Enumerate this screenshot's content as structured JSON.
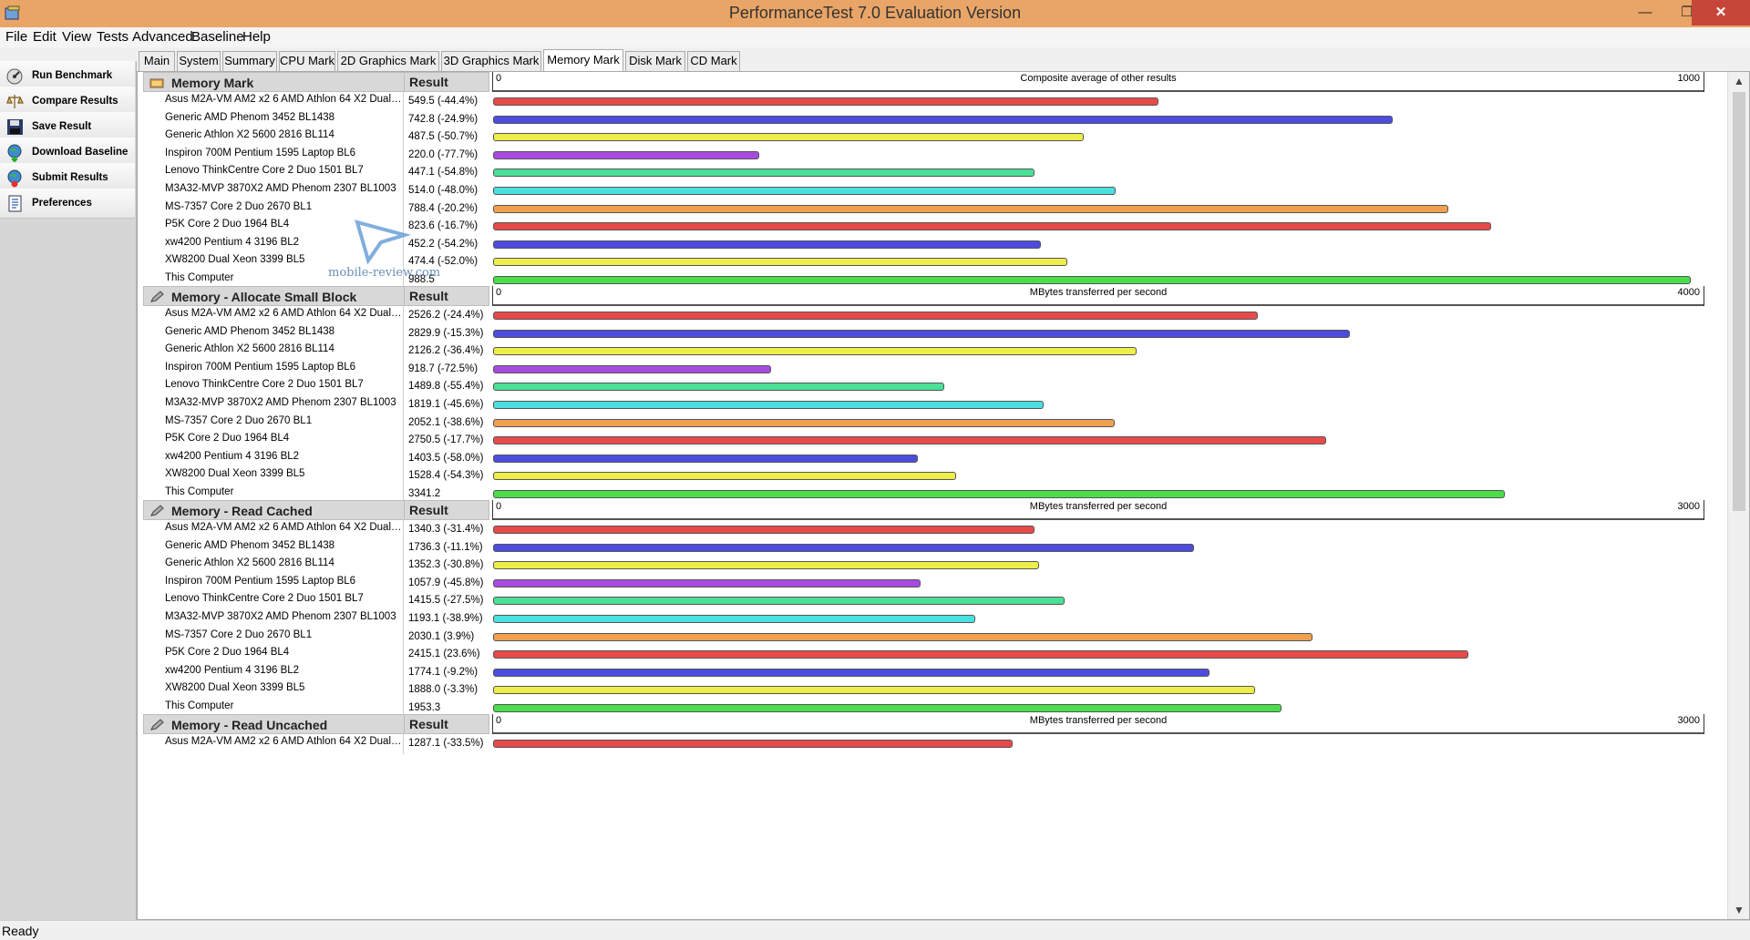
{
  "window": {
    "title": "PerformanceTest 7.0 Evaluation Version"
  },
  "menu": [
    "File",
    "Edit",
    "View",
    "Tests",
    "Advanced",
    "Baseline",
    "Help"
  ],
  "sidebar": [
    {
      "label": "Run Benchmark",
      "icon": "run-benchmark-icon"
    },
    {
      "label": "Compare Results",
      "icon": "scales-icon"
    },
    {
      "label": "Save Result",
      "icon": "floppy-disk-icon"
    },
    {
      "label": "Download Baseline",
      "icon": "globe-download-icon"
    },
    {
      "label": "Submit Results",
      "icon": "globe-upload-icon"
    },
    {
      "label": "Preferences",
      "icon": "preferences-icon"
    }
  ],
  "tabs": [
    "Main",
    "System",
    "Summary",
    "CPU Mark",
    "2D Graphics Mark",
    "3D Graphics Mark",
    "Memory Mark",
    "Disk Mark",
    "CD Mark"
  ],
  "active_tab": "Memory Mark",
  "result_header": "Result",
  "colors": [
    "#e84a4a",
    "#4c4ce0",
    "#eeee4a",
    "#a84ae0",
    "#4ae096",
    "#4ae0e0",
    "#f0a050",
    "#e84a4a",
    "#4c4ce0",
    "#eeee4a",
    "#4ade4a"
  ],
  "sections": [
    {
      "title": "Memory Mark",
      "axis": {
        "min": "0",
        "max": "1000",
        "label": "Composite average of other results"
      },
      "rows": [
        {
          "name": "Asus M2A-VM AM2 x2 6 AMD Athlon 64 X2 Dual Cor...",
          "result": "549.5 (-44.4%)"
        },
        {
          "name": "Generic AMD Phenom 3452 BL1438",
          "result": "742.8 (-24.9%)"
        },
        {
          "name": "Generic Athlon X2 5600 2816 BL114",
          "result": "487.5 (-50.7%)"
        },
        {
          "name": "Inspiron 700M Pentium 1595 Laptop BL6",
          "result": "220.0 (-77.7%)"
        },
        {
          "name": "Lenovo ThinkCentre   Core 2 Duo 1501 BL7",
          "result": "447.1 (-54.8%)"
        },
        {
          "name": "M3A32-MVP 3870X2 AMD Phenom 2307 BL1003",
          "result": "514.0 (-48.0%)"
        },
        {
          "name": "MS-7357 Core 2 Duo 2670 BL1",
          "result": "788.4 (-20.2%)"
        },
        {
          "name": "P5K Core 2 Duo 1964 BL4",
          "result": "823.6 (-16.7%)"
        },
        {
          "name": "xw4200 Pentium 4 3196 BL2",
          "result": "452.2 (-54.2%)"
        },
        {
          "name": "XW8200 Dual Xeon 3399 BL5",
          "result": "474.4 (-52.0%)"
        },
        {
          "name": "This Computer",
          "result": "988.5"
        }
      ]
    },
    {
      "title": "Memory - Allocate Small Block",
      "axis": {
        "min": "0",
        "max": "4000",
        "label": "MBytes transferred per second"
      },
      "rows": [
        {
          "name": "Asus M2A-VM AM2 x2 6 AMD Athlon 64 X2 Dual Cor...",
          "result": "2526.2 (-24.4%)"
        },
        {
          "name": "Generic AMD Phenom 3452 BL1438",
          "result": "2829.9 (-15.3%)"
        },
        {
          "name": "Generic Athlon X2 5600 2816 BL114",
          "result": "2126.2 (-36.4%)"
        },
        {
          "name": "Inspiron 700M Pentium 1595 Laptop BL6",
          "result": "918.7 (-72.5%)"
        },
        {
          "name": "Lenovo ThinkCentre   Core 2 Duo 1501 BL7",
          "result": "1489.8 (-55.4%)"
        },
        {
          "name": "M3A32-MVP 3870X2 AMD Phenom 2307 BL1003",
          "result": "1819.1 (-45.6%)"
        },
        {
          "name": "MS-7357 Core 2 Duo 2670 BL1",
          "result": "2052.1 (-38.6%)"
        },
        {
          "name": "P5K Core 2 Duo 1964 BL4",
          "result": "2750.5 (-17.7%)"
        },
        {
          "name": "xw4200 Pentium 4 3196 BL2",
          "result": "1403.5 (-58.0%)"
        },
        {
          "name": "XW8200 Dual Xeon 3399 BL5",
          "result": "1528.4 (-54.3%)"
        },
        {
          "name": "This Computer",
          "result": "3341.2"
        }
      ]
    },
    {
      "title": "Memory - Read Cached",
      "axis": {
        "min": "0",
        "max": "3000",
        "label": "MBytes transferred per second"
      },
      "rows": [
        {
          "name": "Asus M2A-VM AM2 x2 6 AMD Athlon 64 X2 Dual Cor...",
          "result": "1340.3 (-31.4%)"
        },
        {
          "name": "Generic AMD Phenom 3452 BL1438",
          "result": "1736.3 (-11.1%)"
        },
        {
          "name": "Generic Athlon X2 5600 2816 BL114",
          "result": "1352.3 (-30.8%)"
        },
        {
          "name": "Inspiron 700M Pentium 1595 Laptop BL6",
          "result": "1057.9 (-45.8%)"
        },
        {
          "name": "Lenovo ThinkCentre   Core 2 Duo 1501 BL7",
          "result": "1415.5 (-27.5%)"
        },
        {
          "name": "M3A32-MVP 3870X2 AMD Phenom 2307 BL1003",
          "result": "1193.1 (-38.9%)"
        },
        {
          "name": "MS-7357 Core 2 Duo 2670 BL1",
          "result": "2030.1 (3.9%)"
        },
        {
          "name": "P5K Core 2 Duo 1964 BL4",
          "result": "2415.1 (23.6%)"
        },
        {
          "name": "xw4200 Pentium 4 3196 BL2",
          "result": "1774.1 (-9.2%)"
        },
        {
          "name": "XW8200 Dual Xeon 3399 BL5",
          "result": "1888.0 (-3.3%)"
        },
        {
          "name": "This Computer",
          "result": "1953.3"
        }
      ]
    },
    {
      "title": "Memory - Read Uncached",
      "axis": {
        "min": "0",
        "max": "3000",
        "label": "MBytes transferred per second"
      },
      "rows": [
        {
          "name": "Asus M2A-VM AM2 x2 6 AMD Athlon 64 X2 Dual Cor...",
          "result": "1287.1 (-33.5%)"
        }
      ]
    }
  ],
  "chart_data": [
    {
      "type": "bar",
      "title": "Memory Mark",
      "xlabel": "Composite average of other results",
      "xlim": [
        0,
        1000
      ],
      "categories": [
        "Asus M2A-VM AM2 x2 6 AMD Athlon 64 X2 Dual Cor...",
        "Generic AMD Phenom 3452 BL1438",
        "Generic Athlon X2 5600 2816 BL114",
        "Inspiron 700M Pentium 1595 Laptop BL6",
        "Lenovo ThinkCentre   Core 2 Duo 1501 BL7",
        "M3A32-MVP 3870X2 AMD Phenom 2307 BL1003",
        "MS-7357 Core 2 Duo 2670 BL1",
        "P5K Core 2 Duo 1964 BL4",
        "xw4200 Pentium 4 3196 BL2",
        "XW8200 Dual Xeon 3399 BL5",
        "This Computer"
      ],
      "values": [
        549.5,
        742.8,
        487.5,
        220.0,
        447.1,
        514.0,
        788.4,
        823.6,
        452.2,
        474.4,
        988.5
      ]
    },
    {
      "type": "bar",
      "title": "Memory - Allocate Small Block",
      "xlabel": "MBytes transferred per second",
      "xlim": [
        0,
        4000
      ],
      "categories": [
        "Asus M2A-VM AM2 x2 6 AMD Athlon 64 X2 Dual Cor...",
        "Generic AMD Phenom 3452 BL1438",
        "Generic Athlon X2 5600 2816 BL114",
        "Inspiron 700M Pentium 1595 Laptop BL6",
        "Lenovo ThinkCentre   Core 2 Duo 1501 BL7",
        "M3A32-MVP 3870X2 AMD Phenom 2307 BL1003",
        "MS-7357 Core 2 Duo 2670 BL1",
        "P5K Core 2 Duo 1964 BL4",
        "xw4200 Pentium 4 3196 BL2",
        "XW8200 Dual Xeon 3399 BL5",
        "This Computer"
      ],
      "values": [
        2526.2,
        2829.9,
        2126.2,
        918.7,
        1489.8,
        1819.1,
        2052.1,
        2750.5,
        1403.5,
        1528.4,
        3341.2
      ]
    },
    {
      "type": "bar",
      "title": "Memory - Read Cached",
      "xlabel": "MBytes transferred per second",
      "xlim": [
        0,
        3000
      ],
      "categories": [
        "Asus M2A-VM AM2 x2 6 AMD Athlon 64 X2 Dual Cor...",
        "Generic AMD Phenom 3452 BL1438",
        "Generic Athlon X2 5600 2816 BL114",
        "Inspiron 700M Pentium 1595 Laptop BL6",
        "Lenovo ThinkCentre   Core 2 Duo 1501 BL7",
        "M3A32-MVP 3870X2 AMD Phenom 2307 BL1003",
        "MS-7357 Core 2 Duo 2670 BL1",
        "P5K Core 2 Duo 1964 BL4",
        "xw4200 Pentium 4 3196 BL2",
        "XW8200 Dual Xeon 3399 BL5",
        "This Computer"
      ],
      "values": [
        1340.3,
        1736.3,
        1352.3,
        1057.9,
        1415.5,
        1193.1,
        2030.1,
        2415.1,
        1774.1,
        1888.0,
        1953.3
      ]
    },
    {
      "type": "bar",
      "title": "Memory - Read Uncached",
      "xlabel": "MBytes transferred per second",
      "xlim": [
        0,
        3000
      ],
      "categories": [
        "Asus M2A-VM AM2 x2 6 AMD Athlon 64 X2 Dual Cor..."
      ],
      "values": [
        1287.1
      ]
    }
  ],
  "watermark": "mobile-review.com",
  "status": "Ready"
}
